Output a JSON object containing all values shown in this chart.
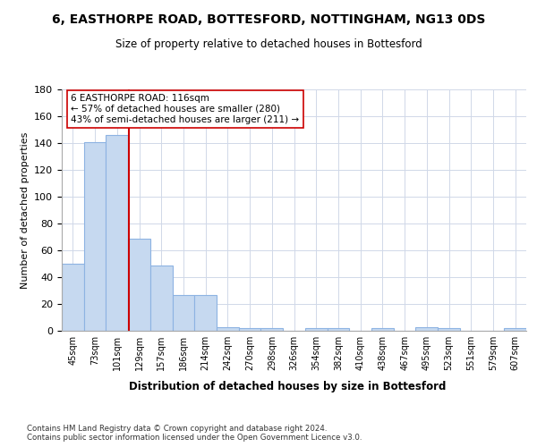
{
  "title": "6, EASTHORPE ROAD, BOTTESFORD, NOTTINGHAM, NG13 0DS",
  "subtitle": "Size of property relative to detached houses in Bottesford",
  "xlabel": "Distribution of detached houses by size in Bottesford",
  "ylabel": "Number of detached properties",
  "categories": [
    "45sqm",
    "73sqm",
    "101sqm",
    "129sqm",
    "157sqm",
    "186sqm",
    "214sqm",
    "242sqm",
    "270sqm",
    "298sqm",
    "326sqm",
    "354sqm",
    "382sqm",
    "410sqm",
    "438sqm",
    "467sqm",
    "495sqm",
    "523sqm",
    "551sqm",
    "579sqm",
    "607sqm"
  ],
  "values": [
    50,
    141,
    146,
    69,
    49,
    27,
    27,
    3,
    2,
    2,
    0,
    2,
    2,
    0,
    2,
    0,
    3,
    2,
    0,
    0,
    2
  ],
  "bar_color": "#c6d9f0",
  "bar_edge_color": "#8db3e2",
  "vline_color": "#cc0000",
  "annotation_text": "6 EASTHORPE ROAD: 116sqm\n← 57% of detached houses are smaller (280)\n43% of semi-detached houses are larger (211) →",
  "annotation_box_color": "#ffffff",
  "annotation_box_edge": "#cc0000",
  "ylim": [
    0,
    180
  ],
  "yticks": [
    0,
    20,
    40,
    60,
    80,
    100,
    120,
    140,
    160,
    180
  ],
  "footer": "Contains HM Land Registry data © Crown copyright and database right 2024.\nContains public sector information licensed under the Open Government Licence v3.0.",
  "background_color": "#ffffff",
  "grid_color": "#d0d8e8"
}
